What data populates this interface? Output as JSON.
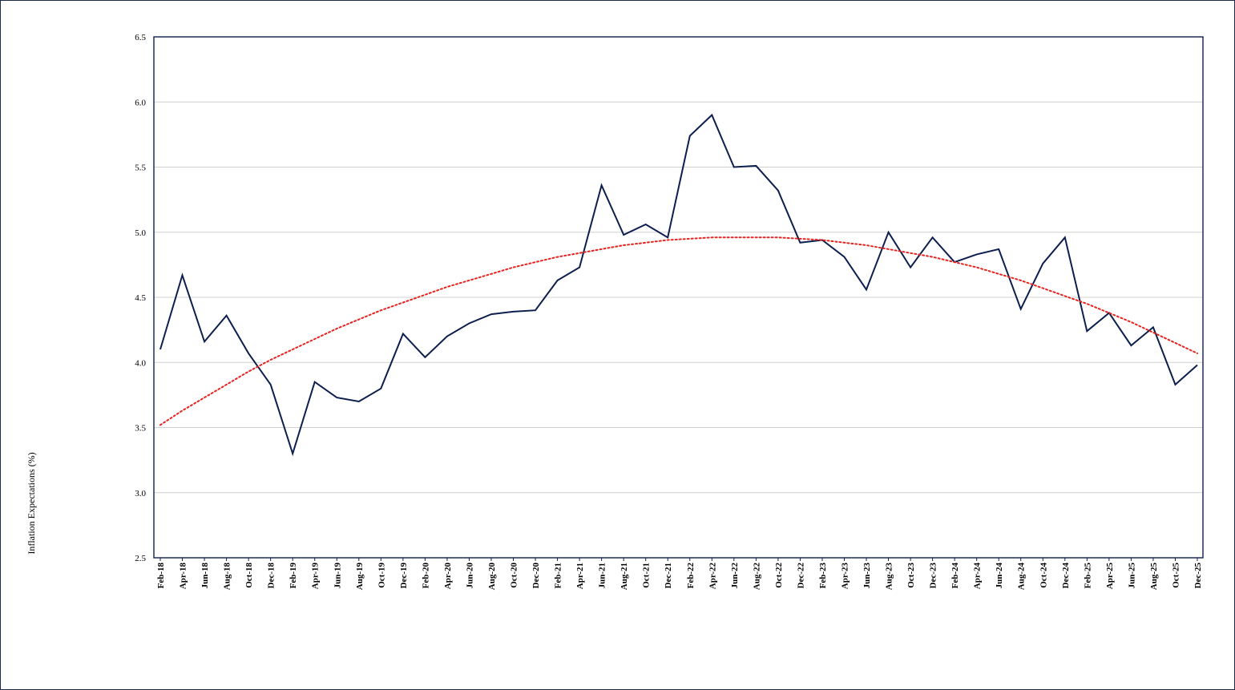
{
  "chart_data": {
    "type": "line",
    "title": "",
    "xlabel": "",
    "ylabel": "Inflation Expectations (%)",
    "ylim": [
      2.5,
      6.5
    ],
    "y_ticks": [
      "2.5",
      "3.0",
      "3.5",
      "4.0",
      "4.5",
      "5.0",
      "5.5",
      "6.0",
      "6.5"
    ],
    "grid": true,
    "legend": "none",
    "categories": [
      "Feb-18",
      "Apr-18",
      "Jun-18",
      "Aug-18",
      "Oct-18",
      "Dec-18",
      "Feb-19",
      "Apr-19",
      "Jun-19",
      "Aug-19",
      "Oct-19",
      "Dec-19",
      "Feb-20",
      "Apr-20",
      "Jun-20",
      "Aug-20",
      "Oct-20",
      "Dec-20",
      "Feb-21",
      "Apr-21",
      "Jun-21",
      "Aug-21",
      "Oct-21",
      "Dec-21",
      "Feb-22",
      "Apr-22",
      "Jun-22",
      "Aug-22",
      "Oct-22",
      "Dec-22",
      "Feb-23",
      "Apr-23",
      "Jun-23",
      "Aug-23",
      "Oct-23",
      "Dec-23",
      "Feb-24",
      "Apr-24",
      "Jun-24",
      "Aug-24",
      "Oct-24",
      "Dec-24",
      "Feb-25",
      "Apr-25",
      "Jun-25",
      "Aug-25",
      "Oct-25",
      "Dec-25"
    ],
    "series": [
      {
        "color": "#0d1f4f",
        "style": "solid",
        "values": [
          4.1,
          4.67,
          4.16,
          4.36,
          4.07,
          3.83,
          3.3,
          3.85,
          3.73,
          3.7,
          3.8,
          4.22,
          4.04,
          4.2,
          4.3,
          4.37,
          4.39,
          4.4,
          4.63,
          4.73,
          5.36,
          4.98,
          5.06,
          4.96,
          5.74,
          5.9,
          5.5,
          5.51,
          5.32,
          4.92,
          4.94,
          4.81,
          4.56,
          5.0,
          4.73,
          4.96,
          4.77,
          4.83,
          4.87,
          4.41,
          4.76,
          4.96,
          4.24,
          4.38,
          4.13,
          4.27,
          3.83,
          3.98
        ]
      },
      {
        "color": "#e8231f",
        "style": "dotted",
        "values": [
          3.52,
          3.63,
          3.73,
          3.83,
          3.93,
          4.02,
          4.1,
          4.18,
          4.26,
          4.33,
          4.4,
          4.46,
          4.52,
          4.58,
          4.63,
          4.68,
          4.73,
          4.77,
          4.81,
          4.84,
          4.87,
          4.9,
          4.92,
          4.94,
          4.95,
          4.96,
          4.96,
          4.96,
          4.96,
          4.95,
          4.94,
          4.92,
          4.9,
          4.87,
          4.84,
          4.81,
          4.77,
          4.73,
          4.68,
          4.63,
          4.57,
          4.51,
          4.45,
          4.38,
          4.31,
          4.23,
          4.15,
          4.07
        ]
      }
    ],
    "colors": {
      "frame": "#1b2a4a",
      "plot_border": "#0d1f4f",
      "gridline": "#d0d0d0"
    }
  }
}
